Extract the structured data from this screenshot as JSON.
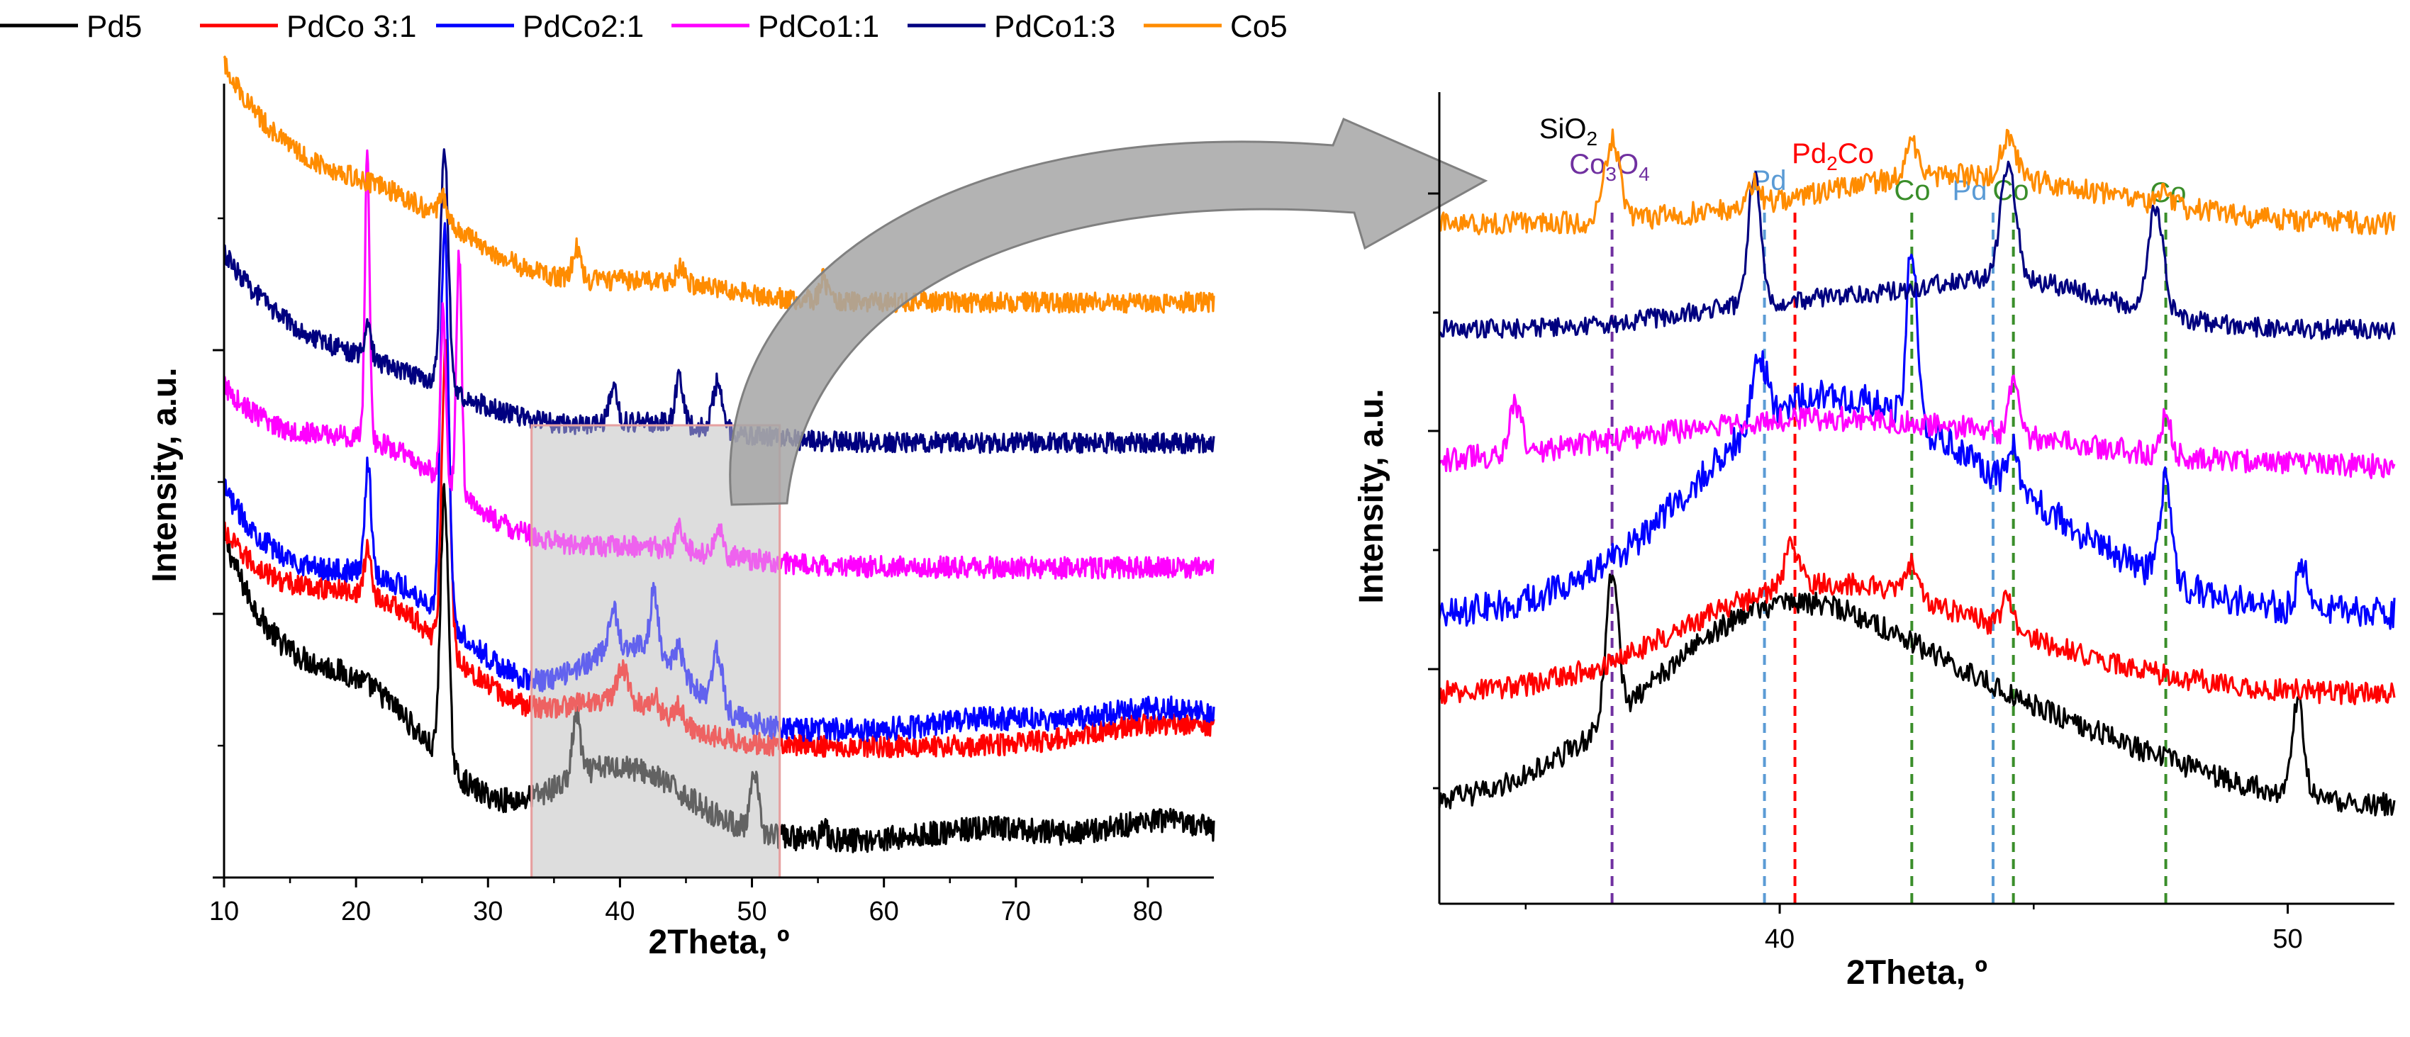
{
  "legend": [
    {
      "name": "Pd5",
      "color": "#000000"
    },
    {
      "name": "PdCo 3:1",
      "color": "#ff0000"
    },
    {
      "name": "PdCo2:1",
      "color": "#0000ff"
    },
    {
      "name": "PdCo1:1",
      "color": "#ff00ff"
    },
    {
      "name": "PdCo1:3",
      "color": "#000080"
    },
    {
      "name": "Co5",
      "color": "#ff8c00"
    }
  ],
  "chart_data": [
    {
      "type": "line",
      "panel": "full",
      "xlabel": "2Theta, º",
      "ylabel": "Intensity, a.u.",
      "xlim": [
        10,
        85
      ],
      "ylim": [
        0,
        100
      ],
      "xticks": [
        10,
        20,
        30,
        40,
        50,
        60,
        70,
        80
      ],
      "xtick_labels": [
        "10",
        "20",
        "30",
        "40",
        "50",
        "60",
        "70",
        "80"
      ],
      "zoom_region": [
        33.3,
        52.1
      ],
      "series": [
        {
          "name": "Pd5",
          "color": "#000000",
          "baseline": 4,
          "decay": 38,
          "decay_width": 7,
          "noise": 1.6,
          "humps": [
            [
              21,
              5,
              12
            ],
            [
              40,
              5,
              9
            ],
            [
              68,
              4,
              1.5
            ],
            [
              81,
              4,
              2.5
            ]
          ],
          "peaks": [
            [
              26.7,
              0.3,
              35
            ],
            [
              36.7,
              0.3,
              8
            ],
            [
              50.2,
              0.3,
              7
            ],
            [
              55.4,
              0.25,
              2
            ]
          ]
        },
        {
          "name": "PdCo 3:1",
          "color": "#ff0000",
          "baseline": 16,
          "decay": 26,
          "decay_width": 9,
          "noise": 1.4,
          "humps": [
            [
              22,
              6,
              12
            ],
            [
              40,
              4,
              5
            ],
            [
              82,
              6,
              3
            ]
          ],
          "peaks": [
            [
              20.9,
              0.25,
              6
            ],
            [
              26.8,
              0.3,
              40
            ],
            [
              40.2,
              0.4,
              4
            ],
            [
              42.6,
              0.3,
              2
            ],
            [
              44.5,
              0.3,
              2
            ]
          ]
        },
        {
          "name": "PdCo2:1",
          "color": "#0000ff",
          "baseline": 18,
          "decay": 30,
          "decay_width": 9,
          "noise": 1.5,
          "humps": [
            [
              23,
              6,
              12
            ],
            [
              41,
              4,
              10
            ],
            [
              68,
              4,
              1.5
            ],
            [
              81,
              5,
              3
            ]
          ],
          "peaks": [
            [
              20.9,
              0.25,
              14
            ],
            [
              26.7,
              0.3,
              50
            ],
            [
              39.5,
              0.3,
              5
            ],
            [
              42.6,
              0.3,
              8
            ],
            [
              44.5,
              0.3,
              3
            ],
            [
              47.4,
              0.35,
              7
            ]
          ]
        },
        {
          "name": "PdCo1:1",
          "color": "#ff00ff",
          "baseline": 39,
          "decay": 22,
          "decay_width": 9,
          "noise": 1.4,
          "humps": [
            [
              22,
              6,
              10
            ],
            [
              42,
              6,
              2
            ]
          ],
          "peaks": [
            [
              20.85,
              0.18,
              36
            ],
            [
              26.6,
              0.2,
              22
            ],
            [
              27.8,
              0.2,
              31
            ],
            [
              44.5,
              0.3,
              3
            ],
            [
              47.5,
              0.3,
              3
            ]
          ]
        },
        {
          "name": "PdCo1:3",
          "color": "#000080",
          "baseline": 55,
          "decay": 24,
          "decay_width": 9,
          "noise": 1.3,
          "humps": [
            [
              23,
              6,
              4
            ],
            [
              43,
              5,
              2
            ]
          ],
          "peaks": [
            [
              20.9,
              0.25,
              4
            ],
            [
              26.7,
              0.3,
              30
            ],
            [
              39.5,
              0.3,
              5
            ],
            [
              44.5,
              0.3,
              6
            ],
            [
              47.4,
              0.35,
              6
            ]
          ]
        },
        {
          "name": "Co5",
          "color": "#ff8c00",
          "baseline": 73,
          "decay": 30,
          "decay_width": 9,
          "noise": 1.3,
          "humps": [
            [
              23,
              6,
              7
            ],
            [
              43,
              5,
              2
            ]
          ],
          "peaks": [
            [
              26.6,
              0.3,
              3
            ],
            [
              36.7,
              0.3,
              4
            ],
            [
              44.6,
              0.3,
              2
            ],
            [
              55.4,
              0.25,
              3
            ]
          ]
        }
      ]
    },
    {
      "type": "line",
      "panel": "zoom",
      "xlabel": "2Theta, º",
      "ylabel": "Intensity, a.u.",
      "xlim": [
        33.3,
        52.1
      ],
      "ylim": [
        0,
        100
      ],
      "xticks": [
        40,
        50
      ],
      "xtick_labels": [
        "40",
        "50"
      ],
      "annotations": [
        {
          "label": "SiO",
          "sub": "2",
          "color": "#000000",
          "x": 36.7,
          "line": false
        },
        {
          "label": "Co",
          "sub": "3",
          "tail": "O",
          "sub2": "4",
          "color": "#7030a0",
          "x": 36.7,
          "line": true
        },
        {
          "label": "Pd",
          "color": "#5b9bd5",
          "x": 39.7,
          "line": true
        },
        {
          "label": "Pd",
          "sub": "2",
          "tail": "Co",
          "color": "#ff0000",
          "x": 40.3,
          "line": true
        },
        {
          "label": "Co",
          "color": "#3a8e2a",
          "x": 42.6,
          "line": true
        },
        {
          "label": "Pd",
          "color": "#5b9bd5",
          "x": 44.2,
          "line": true
        },
        {
          "label": "Co",
          "color": "#3a8e2a",
          "x": 44.6,
          "line": true
        },
        {
          "label": "Co",
          "color": "#3a8e2a",
          "x": 47.6,
          "line": true
        }
      ],
      "series": [
        {
          "name": "Pd5",
          "color": "#000000",
          "baseline": 10,
          "noise": 1.4,
          "humps": [
            [
              39.8,
              2.6,
              22
            ],
            [
              44.5,
              3,
              10
            ]
          ],
          "peaks": [
            [
              36.7,
              0.12,
              18
            ],
            [
              50.2,
              0.12,
              12
            ]
          ]
        },
        {
          "name": "PdCo 3:1",
          "color": "#ff0000",
          "baseline": 24,
          "noise": 1.4,
          "humps": [
            [
              40.2,
              2.5,
              10
            ],
            [
              43.5,
              3,
              6
            ]
          ],
          "peaks": [
            [
              40.25,
              0.15,
              5
            ],
            [
              42.6,
              0.12,
              4
            ],
            [
              44.5,
              0.12,
              4
            ]
          ]
        },
        {
          "name": "PdCo2:1",
          "color": "#0000ff",
          "baseline": 34,
          "noise": 2,
          "humps": [
            [
              40.3,
              2.3,
              22
            ],
            [
              44,
              2.5,
              12
            ]
          ],
          "peaks": [
            [
              39.6,
              0.15,
              8
            ],
            [
              42.6,
              0.1,
              22
            ],
            [
              44.6,
              0.1,
              6
            ],
            [
              47.6,
              0.12,
              12
            ],
            [
              50.3,
              0.12,
              5
            ]
          ]
        },
        {
          "name": "PdCo1:1",
          "color": "#ff00ff",
          "baseline": 52,
          "noise": 1.5,
          "humps": [
            [
              41,
              4,
              6
            ]
          ],
          "peaks": [
            [
              34.8,
              0.12,
              6
            ],
            [
              44.6,
              0.1,
              6
            ],
            [
              47.6,
              0.1,
              5
            ]
          ]
        },
        {
          "name": "PdCo1:3",
          "color": "#000080",
          "baseline": 69,
          "noise": 1.2,
          "humps": [
            [
              44.5,
              2,
              6
            ],
            [
              40,
              2,
              3
            ]
          ],
          "peaks": [
            [
              39.5,
              0.12,
              16
            ],
            [
              44.5,
              0.15,
              14
            ],
            [
              47.4,
              0.15,
              13
            ]
          ]
        },
        {
          "name": "Co5",
          "color": "#ff8c00",
          "baseline": 82,
          "noise": 1.4,
          "humps": [
            [
              43.5,
              3,
              6
            ]
          ],
          "peaks": [
            [
              36.7,
              0.15,
              10
            ],
            [
              39.5,
              0.1,
              3
            ],
            [
              42.6,
              0.12,
              4
            ],
            [
              44.5,
              0.15,
              5
            ],
            [
              47.6,
              0.1,
              2
            ]
          ]
        }
      ]
    }
  ]
}
